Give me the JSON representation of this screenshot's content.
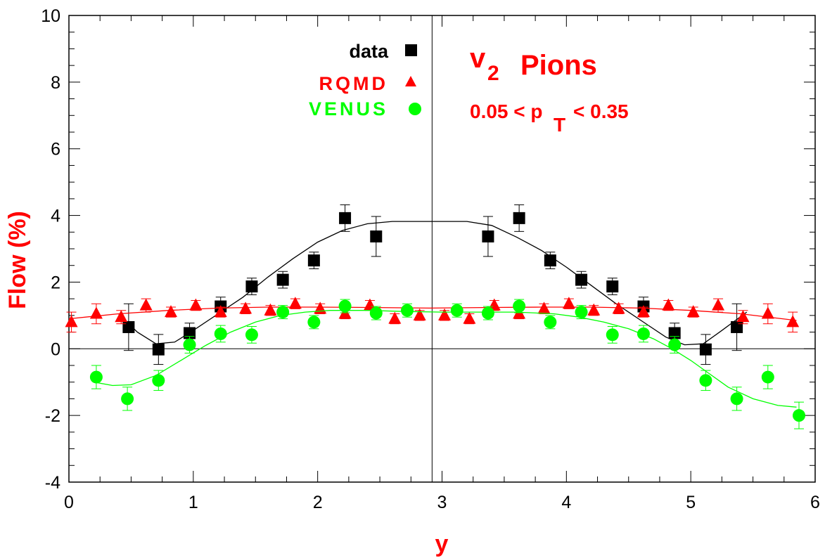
{
  "chart_data": {
    "type": "scatter",
    "xlabel": "y",
    "ylabel": "Flow (%)",
    "xlim": [
      0,
      6
    ],
    "ylim": [
      -4,
      10
    ],
    "x_ticks": [
      "0",
      "1",
      "2",
      "3",
      "4",
      "5",
      "6"
    ],
    "y_ticks": [
      "-4",
      "-2",
      "0",
      "2",
      "4",
      "6",
      "8",
      "10"
    ],
    "x_tick_values": [
      0,
      1,
      2,
      3,
      4,
      5,
      6
    ],
    "y_tick_values": [
      -4,
      -2,
      0,
      2,
      4,
      6,
      8,
      10
    ],
    "reference_lines": {
      "y": 0,
      "x": 2.92
    },
    "annotations": {
      "v_main": "v",
      "v_sub": "2",
      "v_rest": "Pions",
      "pt_left": "0.05 < p",
      "pt_sub": "T",
      "pt_right": "< 0.35"
    },
    "series": [
      {
        "name": "data",
        "marker": "square",
        "color": "#000000",
        "x": [
          0.48,
          0.72,
          0.97,
          1.22,
          1.47,
          1.72,
          1.97,
          2.22,
          2.47,
          3.37,
          3.62,
          3.87,
          4.12,
          4.37,
          4.62,
          4.87,
          5.12,
          5.37
        ],
        "y": [
          0.65,
          -0.02,
          0.47,
          1.27,
          1.87,
          2.07,
          2.65,
          3.92,
          3.37,
          3.37,
          3.92,
          2.65,
          2.07,
          1.87,
          1.27,
          0.47,
          -0.02,
          0.65
        ],
        "err": [
          0.7,
          0.45,
          0.3,
          0.28,
          0.25,
          0.25,
          0.25,
          0.4,
          0.6,
          0.6,
          0.4,
          0.25,
          0.25,
          0.25,
          0.28,
          0.3,
          0.45,
          0.7
        ],
        "fit_x": [
          0.4,
          0.55,
          0.7,
          0.85,
          1.0,
          1.2,
          1.4,
          1.6,
          1.8,
          2.0,
          2.2,
          2.4,
          2.6,
          2.8,
          3.0,
          3.2,
          3.4,
          3.6,
          3.8,
          4.0,
          4.2,
          4.4,
          4.6,
          4.8,
          4.95,
          5.1,
          5.25,
          5.45
        ],
        "fit_y": [
          1.05,
          0.5,
          0.15,
          0.2,
          0.55,
          1.05,
          1.55,
          2.15,
          2.7,
          3.2,
          3.55,
          3.75,
          3.82,
          3.82,
          3.82,
          3.82,
          3.7,
          3.35,
          2.95,
          2.45,
          1.9,
          1.35,
          0.85,
          0.35,
          0.12,
          0.15,
          0.55,
          1.1
        ]
      },
      {
        "name": "RQMD",
        "marker": "triangle",
        "color": "#ff0000",
        "x": [
          0.02,
          0.22,
          0.42,
          0.62,
          0.82,
          1.02,
          1.22,
          1.42,
          1.62,
          1.82,
          2.02,
          2.22,
          2.42,
          2.62,
          2.82,
          3.02,
          3.22,
          3.42,
          3.62,
          3.82,
          4.02,
          4.22,
          4.42,
          4.62,
          4.82,
          5.02,
          5.22,
          5.42,
          5.62,
          5.82
        ],
        "y": [
          0.8,
          1.05,
          0.95,
          1.3,
          1.1,
          1.3,
          1.1,
          1.2,
          1.15,
          1.35,
          1.2,
          1.05,
          1.3,
          0.9,
          1.0,
          1.0,
          0.9,
          1.3,
          1.05,
          1.2,
          1.35,
          1.15,
          1.2,
          1.1,
          1.3,
          1.1,
          1.3,
          0.95,
          1.05,
          0.8
        ],
        "err": [
          0.3,
          0.3,
          0.2,
          0.2,
          0.15,
          0.15,
          0.15,
          0.15,
          0.15,
          0.15,
          0.15,
          0.15,
          0.15,
          0.15,
          0.15,
          0.15,
          0.15,
          0.15,
          0.15,
          0.15,
          0.15,
          0.15,
          0.15,
          0.15,
          0.15,
          0.15,
          0.2,
          0.2,
          0.3,
          0.3
        ],
        "fit_x": [
          0,
          0.4,
          0.8,
          1.2,
          1.6,
          2.0,
          2.4,
          2.9,
          3.4,
          3.8,
          4.2,
          4.6,
          5.0,
          5.4,
          5.85
        ],
        "fit_y": [
          0.9,
          1.05,
          1.15,
          1.22,
          1.25,
          1.25,
          1.24,
          1.22,
          1.24,
          1.25,
          1.25,
          1.22,
          1.15,
          1.05,
          0.85
        ]
      },
      {
        "name": "VENUS",
        "marker": "circle",
        "color": "#00ff00",
        "x": [
          0.22,
          0.47,
          0.72,
          0.97,
          1.22,
          1.47,
          1.72,
          1.97,
          2.22,
          2.47,
          2.72,
          3.12,
          3.37,
          3.62,
          3.87,
          4.12,
          4.37,
          4.62,
          4.87,
          5.12,
          5.37,
          5.62,
          5.87
        ],
        "y": [
          -0.85,
          -1.5,
          -0.95,
          0.12,
          0.45,
          0.42,
          1.1,
          0.8,
          1.28,
          1.07,
          1.15,
          1.15,
          1.07,
          1.28,
          0.8,
          1.1,
          0.42,
          0.45,
          0.12,
          -0.95,
          -1.5,
          -0.85,
          -2.0
        ],
        "err": [
          0.35,
          0.35,
          0.3,
          0.25,
          0.25,
          0.25,
          0.2,
          0.2,
          0.2,
          0.2,
          0.2,
          0.2,
          0.2,
          0.2,
          0.2,
          0.2,
          0.25,
          0.25,
          0.25,
          0.3,
          0.35,
          0.35,
          0.4
        ],
        "fit_x": [
          0.2,
          0.35,
          0.5,
          0.7,
          0.9,
          1.1,
          1.3,
          1.5,
          1.7,
          1.9,
          2.1,
          2.4,
          2.7,
          3.0,
          3.3,
          3.6,
          3.9,
          4.1,
          4.3,
          4.5,
          4.7,
          4.85,
          5.0,
          5.15,
          5.3,
          5.5,
          5.7,
          5.85
        ],
        "fit_y": [
          -1.0,
          -1.1,
          -1.08,
          -0.8,
          -0.35,
          0.1,
          0.5,
          0.8,
          1.0,
          1.1,
          1.15,
          1.15,
          1.12,
          1.1,
          1.1,
          1.1,
          1.05,
          0.95,
          0.8,
          0.6,
          0.3,
          0.0,
          -0.35,
          -0.75,
          -1.15,
          -1.5,
          -1.7,
          -1.75
        ]
      }
    ]
  }
}
